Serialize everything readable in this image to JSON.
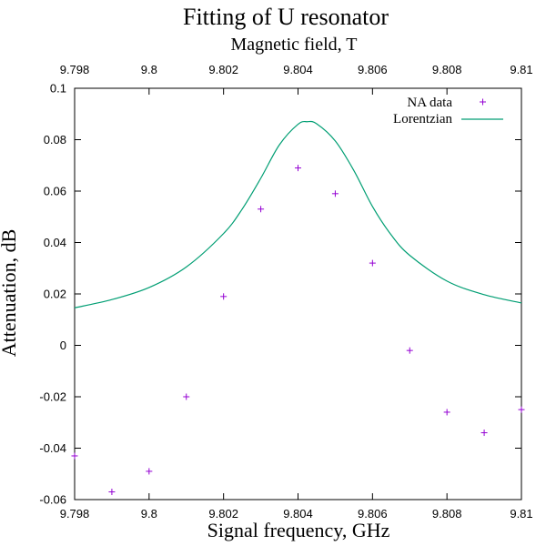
{
  "chart_data": {
    "type": "scatter",
    "title": "Fitting of U resonator",
    "x2label": "Magnetic field, T",
    "xlabel": "Signal frequency, GHz",
    "ylabel": "Attenuation, dB",
    "xlim": [
      9.798,
      9.81
    ],
    "ylim": [
      -0.06,
      0.1
    ],
    "x2lim": [
      9.798,
      9.81
    ],
    "xticks": [
      "9.798",
      "9.8",
      "9.802",
      "9.804",
      "9.806",
      "9.808",
      "9.81"
    ],
    "x2ticks": [
      "9.798",
      "9.8",
      "9.802",
      "9.804",
      "9.806",
      "9.808",
      "9.81"
    ],
    "yticks": [
      "-0.06",
      "-0.04",
      "-0.02",
      "0",
      "0.02",
      "0.04",
      "0.06",
      "0.08",
      "0.1"
    ],
    "grid": false,
    "legend_position": "top-right",
    "series": [
      {
        "name": "NA data",
        "kind": "points",
        "marker": "+",
        "color": "#9400d3",
        "x": [
          9.798,
          9.799,
          9.8,
          9.801,
          9.802,
          9.803,
          9.804,
          9.805,
          9.806,
          9.807,
          9.808,
          9.809,
          9.81
        ],
        "y": [
          -0.043,
          -0.057,
          -0.049,
          -0.02,
          0.019,
          0.053,
          0.069,
          0.059,
          0.032,
          -0.002,
          -0.026,
          -0.034,
          -0.025
        ]
      },
      {
        "name": "Lorentzian",
        "kind": "line",
        "color": "#009e73",
        "x": [
          9.798,
          9.799,
          9.8,
          9.801,
          9.802,
          9.8025,
          9.803,
          9.8035,
          9.804,
          9.80425,
          9.8045,
          9.805,
          9.8055,
          9.806,
          9.8065,
          9.807,
          9.808,
          9.809,
          9.81
        ],
        "y": [
          0.0146,
          0.0178,
          0.0225,
          0.0305,
          0.0435,
          0.053,
          0.065,
          0.078,
          0.086,
          0.087,
          0.0862,
          0.0795,
          0.068,
          0.054,
          0.043,
          0.035,
          0.025,
          0.0197,
          0.0165
        ]
      }
    ]
  }
}
